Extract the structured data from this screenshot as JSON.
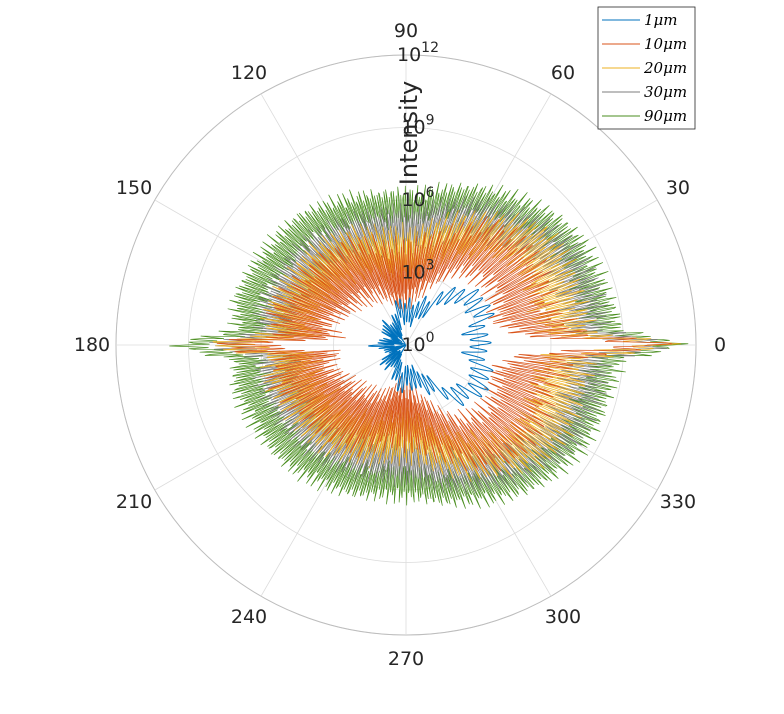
{
  "chart_data": {
    "type": "polar",
    "rlabel": "Intensity",
    "rscale": "log",
    "rlim": [
      1,
      1000000000000.0
    ],
    "rticks": [
      {
        "value": 1,
        "base": "10",
        "exp": "0"
      },
      {
        "value": 1000,
        "base": "10",
        "exp": "3"
      },
      {
        "value": 1000000,
        "base": "10",
        "exp": "6"
      },
      {
        "value": 1000000000,
        "base": "10",
        "exp": "9"
      },
      {
        "value": 1000000000000,
        "base": "10",
        "exp": "12"
      }
    ],
    "theta_ticks_deg": [
      "0",
      "30",
      "60",
      "90",
      "120",
      "150",
      "180",
      "210",
      "240",
      "270",
      "300",
      "330"
    ],
    "grid": true,
    "legend_position": "top-right",
    "series": [
      {
        "name": "1μm",
        "display": "1μm",
        "color": "#0072BD",
        "profile": [
          [
            0,
            1000.0
          ],
          [
            10,
            800.0
          ],
          [
            25,
            3000.0
          ],
          [
            45,
            1000.0
          ],
          [
            60,
            60.0
          ],
          [
            80,
            20.0
          ],
          [
            100,
            30.0
          ],
          [
            120,
            4.0
          ],
          [
            140,
            8.0
          ],
          [
            160,
            2.0
          ],
          [
            180,
            10.0
          ]
        ],
        "osc_period_deg": 6,
        "osc_amp_decades": 0.45
      },
      {
        "name": "10μm",
        "display": "10μm",
        "color": "#D95319",
        "profile": [
          [
            0,
            10000000000.0
          ],
          [
            4,
            1000000.0
          ],
          [
            15,
            100000.0
          ],
          [
            30,
            200000.0
          ],
          [
            40,
            200000.0
          ],
          [
            55,
            80000.0
          ],
          [
            70,
            5000.0
          ],
          [
            85,
            1000.0
          ],
          [
            100,
            800.0
          ],
          [
            115,
            3000.0
          ],
          [
            130,
            5000.0
          ],
          [
            150,
            10000.0
          ],
          [
            165,
            30000.0
          ],
          [
            175,
            10000.0
          ],
          [
            180,
            8000000.0
          ]
        ],
        "osc_period_deg": 1.4,
        "osc_amp_decades": 1.2
      },
      {
        "name": "20μm",
        "display": "20μm",
        "color": "#EDB120",
        "profile": [
          [
            0,
            30000000000.0
          ],
          [
            4,
            5000000.0
          ],
          [
            15,
            3000000.0
          ],
          [
            30,
            4000000.0
          ],
          [
            40,
            3000000.0
          ],
          [
            55,
            300000.0
          ],
          [
            70,
            40000.0
          ],
          [
            85,
            5000.0
          ],
          [
            100,
            6000.0
          ],
          [
            115,
            15000.0
          ],
          [
            130,
            30000.0
          ],
          [
            150,
            40000.0
          ],
          [
            165,
            80000.0
          ],
          [
            175,
            50000.0
          ],
          [
            180,
            20000000.0
          ]
        ],
        "osc_period_deg": 1.2,
        "osc_amp_decades": 1.0
      },
      {
        "name": "30μm",
        "display": "30μm",
        "color": "#7E7E7E",
        "profile": [
          [
            0,
            30000000000.0
          ],
          [
            4,
            30000000.0
          ],
          [
            15,
            30000000.0
          ],
          [
            30,
            20000000.0
          ],
          [
            40,
            8000000.0
          ],
          [
            55,
            1500000.0
          ],
          [
            70,
            300000.0
          ],
          [
            85,
            70000.0
          ],
          [
            100,
            60000.0
          ],
          [
            115,
            80000.0
          ],
          [
            130,
            150000.0
          ],
          [
            150,
            200000.0
          ],
          [
            165,
            300000.0
          ],
          [
            175,
            200000.0
          ],
          [
            180,
            30000000.0
          ]
        ],
        "osc_period_deg": 1.0,
        "osc_amp_decades": 0.8
      },
      {
        "name": "90μm",
        "display": "90μm",
        "color": "#4A8E1F",
        "profile": [
          [
            0,
            100000000000.0
          ],
          [
            4,
            200000000.0
          ],
          [
            15,
            100000000.0
          ],
          [
            30,
            80000000.0
          ],
          [
            40,
            40000000.0
          ],
          [
            55,
            10000000.0
          ],
          [
            70,
            2000000.0
          ],
          [
            85,
            500000.0
          ],
          [
            100,
            500000.0
          ],
          [
            115,
            1000000.0
          ],
          [
            130,
            2000000.0
          ],
          [
            150,
            3000000.0
          ],
          [
            165,
            5000000.0
          ],
          [
            175,
            3000000.0
          ],
          [
            180,
            1000000000.0
          ]
        ],
        "osc_period_deg": 0.9,
        "osc_amp_decades": 0.7
      }
    ]
  }
}
